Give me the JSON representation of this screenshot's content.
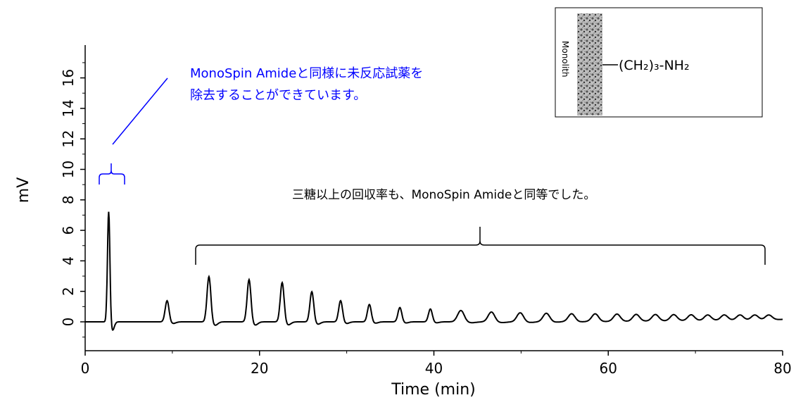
{
  "chart_data": {
    "type": "line",
    "xlabel": "Time (min)",
    "ylabel": "mV",
    "xlim": [
      0,
      80
    ],
    "ylim": [
      -1.8,
      18
    ],
    "x_ticks": [
      0,
      20,
      40,
      60,
      80
    ],
    "y_ticks": [
      0,
      2,
      4,
      6,
      8,
      10,
      12,
      14,
      16
    ],
    "grid": false,
    "series": [
      {
        "color": "#000000",
        "peaks": [
          {
            "x": 2.7,
            "y": 7.3
          },
          {
            "x": 9.4,
            "y": 1.4
          },
          {
            "x": 14.2,
            "y": 3.0
          },
          {
            "x": 18.8,
            "y": 2.8
          },
          {
            "x": 22.6,
            "y": 2.6
          },
          {
            "x": 26.0,
            "y": 2.0
          },
          {
            "x": 29.3,
            "y": 1.4
          },
          {
            "x": 32.6,
            "y": 1.15
          },
          {
            "x": 36.1,
            "y": 0.95
          },
          {
            "x": 39.6,
            "y": 0.85
          },
          {
            "x": 43.1,
            "y": 0.75
          },
          {
            "x": 46.6,
            "y": 0.65
          },
          {
            "x": 49.9,
            "y": 0.6
          },
          {
            "x": 52.9,
            "y": 0.55
          },
          {
            "x": 55.8,
            "y": 0.5
          },
          {
            "x": 58.5,
            "y": 0.48
          },
          {
            "x": 61.0,
            "y": 0.45
          },
          {
            "x": 63.2,
            "y": 0.42
          },
          {
            "x": 65.4,
            "y": 0.4
          },
          {
            "x": 67.5,
            "y": 0.38
          },
          {
            "x": 69.5,
            "y": 0.36
          },
          {
            "x": 71.4,
            "y": 0.34
          },
          {
            "x": 73.3,
            "y": 0.33
          },
          {
            "x": 75.1,
            "y": 0.32
          },
          {
            "x": 76.8,
            "y": 0.31
          },
          {
            "x": 78.4,
            "y": 0.3
          }
        ]
      }
    ],
    "annotations": {
      "blue_line1": "MonoSpin Amideと同様に未反応試薬を",
      "blue_line2": "除去することができています。",
      "black_note": "三糖以上の回収率も、MonoSpin Amideと同等でした。"
    }
  },
  "inset": {
    "vertical_label": "Monolith",
    "formula": "(CH₂)₃-NH₂"
  },
  "colors": {
    "trace": "#000000",
    "annotation": "#0000ff"
  }
}
